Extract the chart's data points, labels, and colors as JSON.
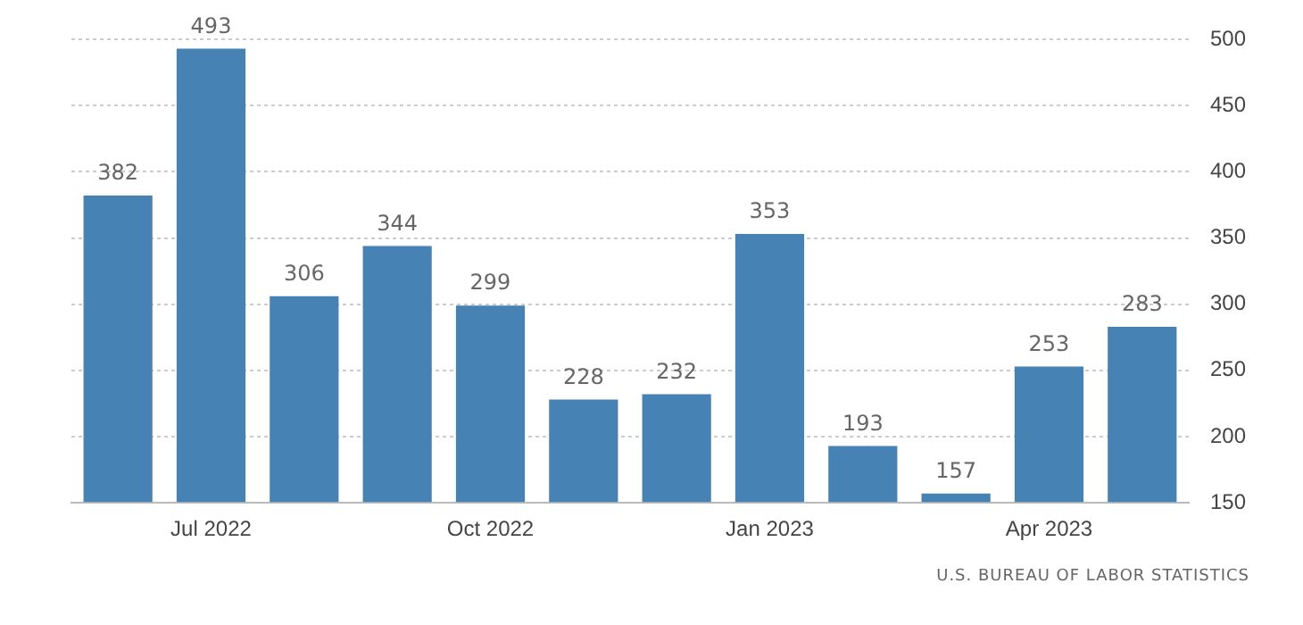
{
  "chart_data": {
    "type": "bar",
    "categories": [
      null,
      "Jul 2022",
      null,
      null,
      "Oct 2022",
      null,
      null,
      "Jan 2023",
      null,
      null,
      "Apr 2023",
      null
    ],
    "values": [
      382,
      493,
      306,
      344,
      299,
      228,
      232,
      353,
      193,
      157,
      253,
      283
    ],
    "color": "#4682b4",
    "ylim": [
      150,
      500
    ],
    "yticks": [
      150,
      200,
      250,
      300,
      350,
      400,
      450,
      500
    ],
    "grid": "y",
    "data_labels": true,
    "annotations": [
      "U.S. BUREAU OF LABOR STATISTICS"
    ]
  }
}
